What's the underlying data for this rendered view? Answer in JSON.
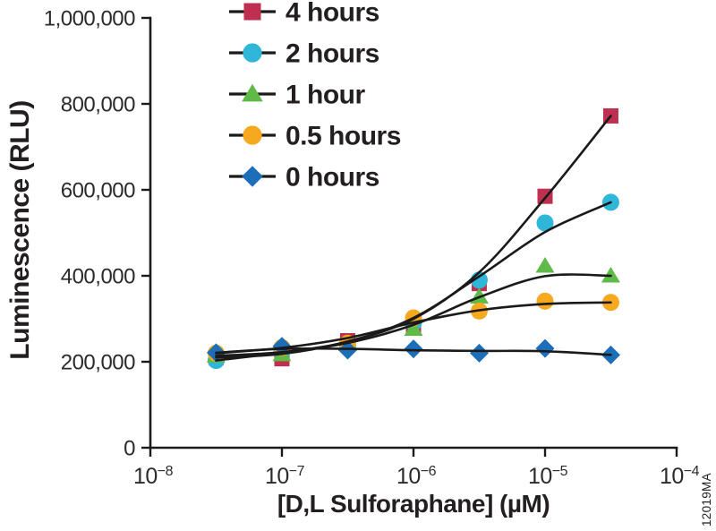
{
  "figure": {
    "ylabel": "Luminescence (RLU)",
    "xlabel": "[D,L Sulforaphane] (µM)",
    "watermark": "12019MA"
  },
  "chart_data": {
    "type": "line",
    "title": "",
    "xlabel": "[D,L Sulforaphane] (µM)",
    "ylabel": "Luminescence (RLU)",
    "x_scale": "log10",
    "xlim_exponents": [
      -8,
      -4
    ],
    "x_ticks": {
      "base": "10",
      "exponents": [
        -8,
        -7,
        -6,
        -5,
        -4
      ]
    },
    "ylim": [
      0,
      1000000
    ],
    "y_ticks": [
      {
        "value": 0,
        "label": "0"
      },
      {
        "value": 200000,
        "label": "200,000"
      },
      {
        "value": 400000,
        "label": "400,000"
      },
      {
        "value": 600000,
        "label": "600,000"
      },
      {
        "value": 800000,
        "label": "800,000"
      },
      {
        "value": 1000000,
        "label": "1,000,000"
      }
    ],
    "grid": false,
    "legend_position": "top-center",
    "line_color": "#1a1a1a",
    "x": [
      3.16e-08,
      1e-07,
      3.16e-07,
      1e-06,
      3.16e-06,
      1e-05,
      3.16e-05
    ],
    "series": [
      {
        "name": "4 hours",
        "marker": "square",
        "color": "#bf3050",
        "values": [
          210000,
          207000,
          249000,
          284000,
          382000,
          585000,
          772000
        ]
      },
      {
        "name": "2 hours",
        "marker": "circle",
        "color": "#2fb6d8",
        "values": [
          203000,
          224000,
          236000,
          291000,
          390000,
          523000,
          571000
        ]
      },
      {
        "name": "1 hour",
        "marker": "triangle",
        "color": "#5fba48",
        "values": [
          214000,
          217000,
          241000,
          276000,
          351000,
          423000,
          400000
        ]
      },
      {
        "name": "0.5 hours",
        "marker": "circle",
        "color": "#f6a81e",
        "values": [
          220000,
          233000,
          243000,
          302000,
          318000,
          341000,
          338000
        ]
      },
      {
        "name": "0 hours",
        "marker": "diamond",
        "color": "#1d6eb8",
        "values": [
          221000,
          236000,
          227000,
          230000,
          220000,
          231000,
          216000
        ]
      }
    ],
    "watermark": "12019MA"
  }
}
